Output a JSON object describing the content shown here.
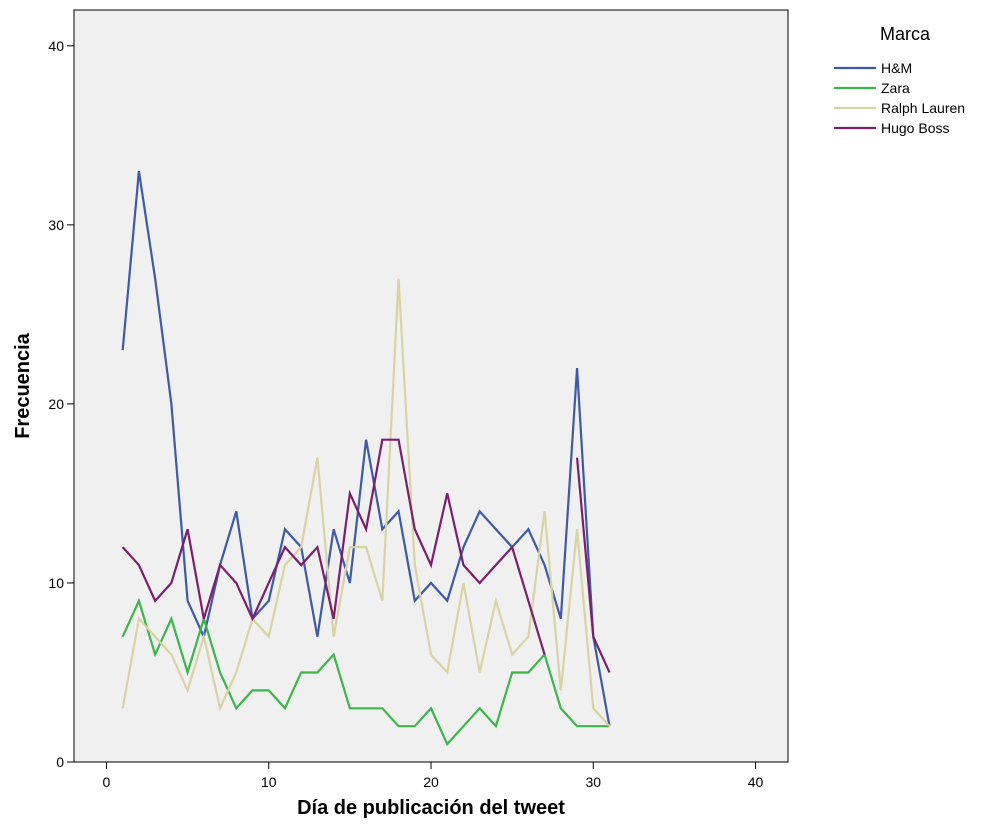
{
  "chart_data": {
    "type": "line",
    "xlabel": "Día de publicación del tweet",
    "ylabel": "Frecuencia",
    "xlim": [
      -2,
      42
    ],
    "ylim": [
      0,
      42
    ],
    "xticks": [
      0,
      10,
      20,
      30,
      40
    ],
    "yticks": [
      0,
      10,
      20,
      30,
      40
    ],
    "grid": false,
    "legend": {
      "title": "Marca",
      "placement": "top-right outside"
    },
    "series": [
      {
        "name": "H&M",
        "color": "#3d5aa8",
        "x": [
          1,
          2,
          3,
          4,
          5,
          6,
          7,
          8,
          9,
          10,
          11,
          12,
          13,
          14,
          15,
          16,
          17,
          18,
          19,
          20,
          21,
          22,
          23,
          24,
          25,
          26,
          27,
          28,
          29,
          30,
          31
        ],
        "values": [
          23,
          33,
          27,
          20,
          9,
          7,
          11,
          14,
          8,
          9,
          13,
          12,
          7,
          13,
          10,
          18,
          13,
          14,
          9,
          10,
          9,
          12,
          14,
          13,
          12,
          13,
          11,
          8,
          22,
          7,
          2
        ]
      },
      {
        "name": "Zara",
        "color": "#3cb54a",
        "x": [
          1,
          2,
          3,
          4,
          5,
          6,
          7,
          8,
          9,
          10,
          11,
          12,
          13,
          14,
          15,
          16,
          17,
          18,
          19,
          20,
          21,
          22,
          23,
          24,
          25,
          26,
          27,
          28,
          29,
          30,
          31
        ],
        "values": [
          7,
          9,
          6,
          8,
          5,
          8,
          5,
          3,
          4,
          4,
          3,
          5,
          5,
          6,
          3,
          3,
          3,
          2,
          2,
          3,
          1,
          2,
          3,
          2,
          5,
          5,
          6,
          3,
          2,
          2,
          2
        ]
      },
      {
        "name": "Ralph Lauren",
        "color": "#d8d3a3",
        "x": [
          1,
          2,
          3,
          4,
          5,
          6,
          7,
          8,
          9,
          10,
          11,
          12,
          13,
          14,
          15,
          16,
          17,
          18,
          19,
          20,
          21,
          22,
          23,
          24,
          25,
          26,
          27,
          28,
          29,
          30,
          31
        ],
        "values": [
          3,
          8,
          7,
          6,
          4,
          7,
          3,
          5,
          8,
          7,
          11,
          12,
          17,
          7,
          12,
          12,
          9,
          27,
          11,
          6,
          5,
          10,
          5,
          9,
          6,
          7,
          14,
          4,
          13,
          3,
          2
        ]
      },
      {
        "name": "Hugo Boss",
        "color": "#7b1e6b",
        "x": [
          1,
          2,
          3,
          4,
          5,
          6,
          7,
          8,
          9,
          10,
          11,
          12,
          13,
          14,
          15,
          16,
          17,
          18,
          19,
          20,
          21,
          22,
          23,
          24,
          25,
          26,
          27,
          28,
          29,
          30,
          31
        ],
        "values": [
          12,
          11,
          9,
          10,
          13,
          8,
          11,
          10,
          8,
          10,
          12,
          11,
          12,
          8,
          15,
          13,
          18,
          18,
          13,
          11,
          15,
          11,
          10,
          11,
          12,
          9,
          6,
          null,
          17,
          7,
          5
        ]
      }
    ]
  }
}
